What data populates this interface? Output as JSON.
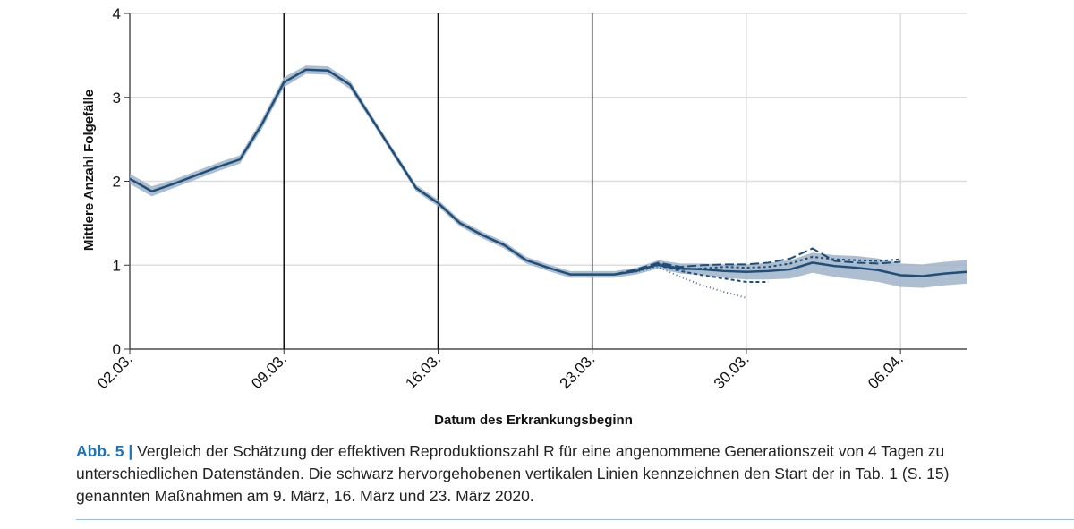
{
  "chart_data": {
    "type": "line",
    "xlabel": "Datum des Erkrankungsbeginn",
    "ylabel": "Mittlere Anzahl Folgefälle",
    "x": [
      0,
      1,
      2,
      3,
      4,
      5,
      6,
      7,
      8,
      9,
      10,
      11,
      12,
      13,
      14,
      15,
      16,
      17,
      18,
      19,
      20,
      21,
      22,
      23,
      24,
      25,
      26,
      27,
      28,
      29,
      30,
      31,
      32,
      33,
      34,
      35,
      36,
      37,
      38
    ],
    "xlim": [
      0,
      38
    ],
    "xticks": [
      {
        "value": 0,
        "label": "02.03."
      },
      {
        "value": 7,
        "label": "09.03."
      },
      {
        "value": 14,
        "label": "16.03."
      },
      {
        "value": 21,
        "label": "23.03."
      },
      {
        "value": 28,
        "label": "30.03."
      },
      {
        "value": 35,
        "label": "06.04."
      }
    ],
    "ylim": [
      0,
      4
    ],
    "yticks": [
      0,
      1,
      2,
      3,
      4
    ],
    "grid": true,
    "vlines": [
      7,
      14,
      21
    ],
    "band": {
      "color": "#9fb3c8",
      "lower": [
        1.97,
        1.82,
        1.92,
        2.02,
        2.12,
        2.21,
        2.62,
        3.12,
        3.28,
        3.27,
        3.1,
        2.7,
        2.29,
        1.88,
        1.7,
        1.46,
        1.32,
        1.2,
        1.02,
        0.93,
        0.85,
        0.85,
        0.85,
        0.89,
        0.96,
        0.9,
        0.88,
        0.85,
        0.83,
        0.83,
        0.84,
        0.91,
        0.86,
        0.83,
        0.8,
        0.74,
        0.73,
        0.76,
        0.78
      ],
      "upper": [
        2.09,
        1.94,
        2.02,
        2.12,
        2.22,
        2.31,
        2.74,
        3.24,
        3.38,
        3.37,
        3.2,
        2.78,
        2.37,
        1.96,
        1.78,
        1.54,
        1.4,
        1.28,
        1.1,
        1.01,
        0.93,
        0.93,
        0.93,
        0.97,
        1.06,
        1.02,
        1.02,
        1.01,
        1.01,
        1.03,
        1.06,
        1.15,
        1.12,
        1.11,
        1.08,
        1.02,
        1.01,
        1.04,
        1.06
      ]
    },
    "series": [
      {
        "color": "#1f4e79",
        "dash": "",
        "values": [
          2.03,
          1.88,
          1.97,
          2.07,
          2.17,
          2.26,
          2.68,
          3.18,
          3.33,
          3.32,
          3.15,
          2.74,
          2.33,
          1.92,
          1.74,
          1.5,
          1.36,
          1.24,
          1.06,
          0.97,
          0.89,
          0.89,
          0.89,
          0.93,
          1.01,
          0.96,
          0.95,
          0.93,
          0.92,
          0.93,
          0.95,
          1.03,
          0.99,
          0.97,
          0.94,
          0.88,
          0.87,
          0.9,
          0.92
        ]
      },
      {
        "color": "#4a6f96",
        "dash": "1 3",
        "values": [
          null,
          null,
          null,
          null,
          null,
          null,
          null,
          null,
          null,
          null,
          null,
          null,
          null,
          null,
          null,
          null,
          null,
          null,
          null,
          null,
          null,
          null,
          0.89,
          0.92,
          0.98,
          0.86,
          0.76,
          0.68,
          0.61,
          null,
          null,
          null,
          null,
          null,
          null,
          null,
          null,
          null,
          null
        ]
      },
      {
        "color": "#1f4e79",
        "dash": "4 3",
        "values": [
          null,
          null,
          null,
          null,
          null,
          null,
          null,
          null,
          null,
          null,
          null,
          null,
          null,
          null,
          null,
          null,
          null,
          null,
          null,
          null,
          null,
          null,
          0.89,
          0.94,
          1.0,
          0.93,
          0.88,
          0.84,
          0.8,
          0.8,
          null,
          null,
          null,
          null,
          null,
          null,
          null,
          null,
          null
        ]
      },
      {
        "color": "#1f4e79",
        "dash": "10 4",
        "values": [
          null,
          null,
          null,
          null,
          null,
          null,
          null,
          null,
          null,
          null,
          null,
          null,
          null,
          null,
          null,
          null,
          null,
          null,
          null,
          null,
          null,
          null,
          0.89,
          0.95,
          1.03,
          0.98,
          1.0,
          1.01,
          1.01,
          1.03,
          1.08,
          1.2,
          1.05,
          1.03,
          1.02,
          1.04,
          null,
          null,
          null
        ]
      },
      {
        "color": "#1f4e79",
        "dash": "3 3",
        "values": [
          null,
          null,
          null,
          null,
          null,
          null,
          null,
          null,
          null,
          null,
          null,
          null,
          null,
          null,
          null,
          null,
          null,
          null,
          null,
          null,
          null,
          null,
          0.89,
          0.93,
          1.0,
          0.95,
          0.96,
          0.98,
          0.97,
          0.98,
          1.02,
          1.1,
          1.07,
          1.06,
          1.05,
          1.07,
          null,
          null,
          null
        ]
      }
    ]
  },
  "caption": {
    "label": "Abb. 5 |",
    "lines": [
      "Vergleich der Schätzung der effektiven Reproduktionszahl R für eine angenommene Generationszeit von 4 Tagen zu",
      "unterschiedlichen Datenständen. Die schwarz hervorgehobenen vertikalen Linien kennzeichnen den Start der in Tab. 1 (S. 15)",
      "genannten Maßnahmen am 9. März, 16. März und 23. März 2020."
    ]
  }
}
